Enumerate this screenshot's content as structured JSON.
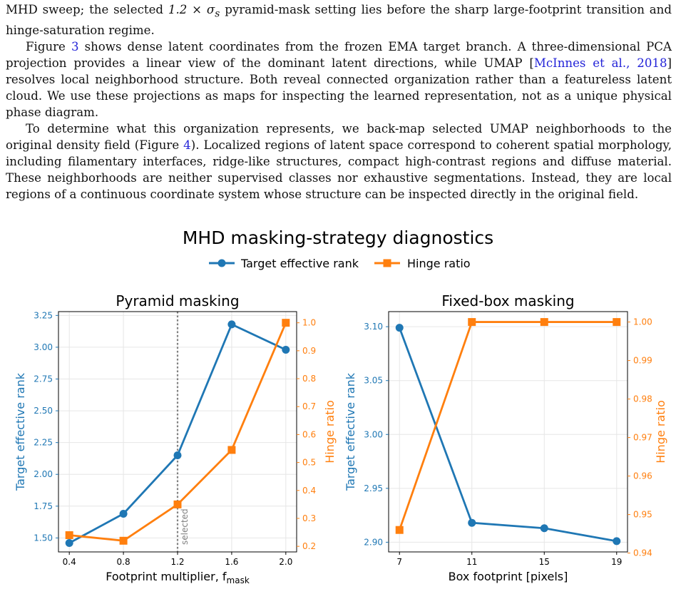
{
  "paper": {
    "para0_a": "MHD sweep; the selected ",
    "para0_math": "1.2 × σ",
    "para0_sub": "s",
    "para0_b": " pyramid-mask setting lies before the sharp large-footprint transition and hinge-saturation regime.",
    "para1_a": "Figure ",
    "para1_ref1": "3",
    "para1_b": " shows dense latent coordinates from the frozen EMA target branch. A three-dimensional PCA projection provides a linear view of the dominant latent directions, while UMAP [",
    "para1_ref2": "McInnes et al., 2018",
    "para1_c": "] resolves local neighborhood structure. Both reveal connected organization rather than a featureless latent cloud. We use these projections as maps for inspecting the learned representation, not as a unique physical phase diagram.",
    "para2_a": "To determine what this organization represents, we back-map selected UMAP neighborhoods to the original density field (Figure ",
    "para2_ref": "4",
    "para2_b": "). Localized regions of latent space correspond to coherent spatial morphology, including filamentary interfaces, ridge-like structures, compact high-contrast regions and diffuse material. These neighborhoods are neither supervised classes nor exhaustive segmentations. Instead, they are local regions of a continuous coordinate system whose structure can be inspected directly in the original field."
  },
  "figure": {
    "suptitle": "MHD masking-strategy diagnostics",
    "legend": [
      "Target effective rank",
      "Hinge ratio"
    ],
    "colors": {
      "blue": "#1f77b4",
      "orange": "#ff7f0e",
      "grid": "#e6e6e6",
      "vline": "#808080"
    }
  },
  "chart_data": [
    {
      "type": "line",
      "title": "Pyramid masking",
      "xlabel": "Footprint multiplier, f",
      "xlabel_sub": "mask",
      "ylabel": "Target effective rank",
      "y2label": "Hinge ratio",
      "x": [
        0.4,
        0.8,
        1.2,
        1.6,
        2.0
      ],
      "xticks": [
        "0.4",
        "0.8",
        "1.2",
        "1.6",
        "2.0"
      ],
      "xlim": [
        0.32,
        2.08
      ],
      "series": [
        {
          "name": "Target effective rank",
          "axis": "left",
          "values": [
            1.46,
            1.69,
            2.15,
            3.18,
            2.98
          ]
        },
        {
          "name": "Hinge ratio",
          "axis": "right",
          "values": [
            0.24,
            0.22,
            0.35,
            0.545,
            1.0
          ]
        }
      ],
      "ylim": [
        1.39,
        3.28
      ],
      "yticks": [
        1.5,
        1.75,
        2.0,
        2.25,
        2.5,
        2.75,
        3.0,
        3.25
      ],
      "yticklabels": [
        "1.50",
        "1.75",
        "2.00",
        "2.25",
        "2.50",
        "2.75",
        "3.00",
        "3.25"
      ],
      "y2lim": [
        0.18,
        1.04
      ],
      "y2ticks": [
        0.2,
        0.3,
        0.4,
        0.5,
        0.6,
        0.7,
        0.8,
        0.9,
        1.0
      ],
      "y2ticklabels": [
        "0.2",
        "0.3",
        "0.4",
        "0.5",
        "0.6",
        "0.7",
        "0.8",
        "0.9",
        "1.0"
      ],
      "vline": {
        "x": 1.2,
        "label": "selected"
      },
      "grid": true
    },
    {
      "type": "line",
      "title": "Fixed-box masking",
      "xlabel": "Box footprint [pixels]",
      "xlabel_sub": "",
      "ylabel": "Target effective rank",
      "y2label": "Hinge ratio",
      "x": [
        7,
        11,
        15,
        19
      ],
      "xticks": [
        "7",
        "11",
        "15",
        "19"
      ],
      "xlim": [
        6.4,
        19.6
      ],
      "series": [
        {
          "name": "Target effective rank",
          "axis": "left",
          "values": [
            3.099,
            2.918,
            2.913,
            2.901
          ]
        },
        {
          "name": "Hinge ratio",
          "axis": "right",
          "values": [
            0.946,
            1.0,
            1.0,
            1.0
          ]
        }
      ],
      "ylim": [
        2.891,
        3.114
      ],
      "yticks": [
        2.9,
        2.95,
        3.0,
        3.05,
        3.1
      ],
      "yticklabels": [
        "2.90",
        "2.95",
        "3.00",
        "3.05",
        "3.10"
      ],
      "y2lim": [
        0.9403,
        1.0027
      ],
      "y2ticks": [
        0.94,
        0.95,
        0.96,
        0.97,
        0.98,
        0.99,
        1.0
      ],
      "y2ticklabels": [
        "0.94",
        "0.95",
        "0.96",
        "0.97",
        "0.98",
        "0.99",
        "1.00"
      ],
      "vline": null,
      "grid": true
    }
  ]
}
